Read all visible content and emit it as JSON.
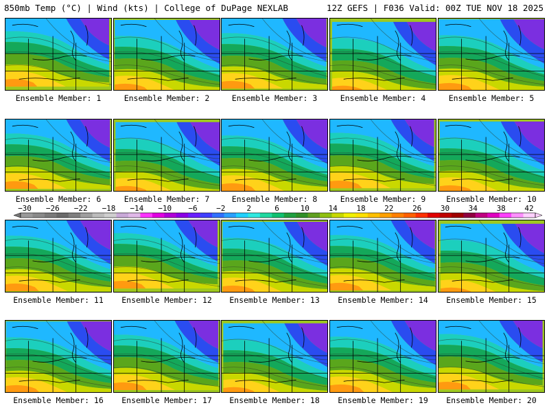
{
  "header": {
    "left": "850mb Temp (°C) | Wind (kts) | College of DuPage NEXLAB",
    "right": "12Z GEFS | F036 Valid: 00Z TUE NOV 18 2025"
  },
  "members": [
    "Ensemble Member: 1",
    "Ensemble Member: 2",
    "Ensemble Member: 3",
    "Ensemble Member: 4",
    "Ensemble Member: 5",
    "Ensemble Member: 6",
    "Ensemble Member: 7",
    "Ensemble Member: 8",
    "Ensemble Member: 9",
    "Ensemble Member: 10",
    "Ensemble Member: 11",
    "Ensemble Member: 12",
    "Ensemble Member: 13",
    "Ensemble Member: 14",
    "Ensemble Member: 15",
    "Ensemble Member: 16",
    "Ensemble Member: 17",
    "Ensemble Member: 18",
    "Ensemble Member: 19",
    "Ensemble Member: 20"
  ],
  "colorbar": {
    "tick_labels": [
      "−30",
      "−26",
      "−22",
      "−18",
      "−14",
      "−10",
      "−6",
      "−2",
      "2",
      "6",
      "10",
      "14",
      "18",
      "22",
      "26",
      "30",
      "34",
      "38",
      "42"
    ],
    "colors": [
      "#9a9a9a",
      "#8a8a8a",
      "#7a7a7a",
      "#6a6a6a",
      "#7f7f7f",
      "#9f9f9f",
      "#bcbcbc",
      "#cfcfcf",
      "#c9a9d8",
      "#e0b8e8",
      "#ff33ff",
      "#e100e1",
      "#b000d8",
      "#8a00e6",
      "#6a20ff",
      "#4040ff",
      "#3070ff",
      "#2aa0ff",
      "#20d0ff",
      "#30e8e0",
      "#20d8a0",
      "#10c070",
      "#20a040",
      "#309028",
      "#60a020",
      "#90c010",
      "#c8d800",
      "#f0f000",
      "#ffe000",
      "#ffc000",
      "#ffa000",
      "#ff8000",
      "#ff6000",
      "#ff3000",
      "#e00000",
      "#c00000",
      "#a00000",
      "#900040",
      "#c00080",
      "#e000c0",
      "#ff40ff",
      "#ff90ff",
      "#ffd0ff"
    ]
  }
}
